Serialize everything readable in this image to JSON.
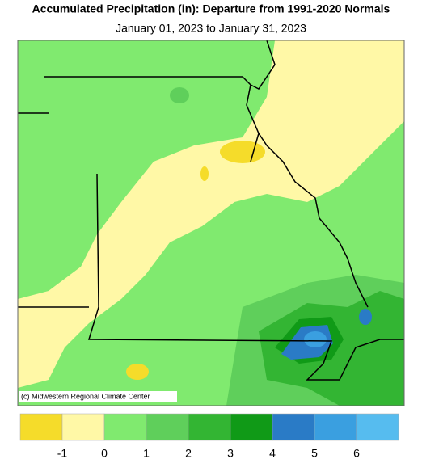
{
  "header": {
    "title": "Accumulated Precipitation (in): Departure from 1991-2020 Normals",
    "subtitle": "January 01, 2023 to January 31, 2023"
  },
  "map": {
    "credit": "(c) Midwestern Regional Climate Center"
  },
  "legend": {
    "colors": [
      "#f5dc2a",
      "#fff8a6",
      "#80ea6f",
      "#5fcf5b",
      "#33b533",
      "#109a17",
      "#2a7bc6",
      "#3a9fe0",
      "#56bcef"
    ],
    "ticks": [
      -1,
      0,
      1,
      2,
      3,
      4,
      5,
      6
    ]
  }
}
